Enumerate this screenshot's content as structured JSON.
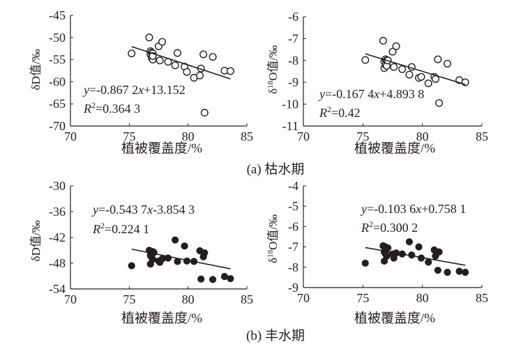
{
  "panel_captions": {
    "a": "(a) 枯水期",
    "b": "(b) 丰水期"
  },
  "chart_data": [
    {
      "type": "scatter",
      "id": "a-left",
      "marker": "open-circle",
      "xlabel": "植被覆盖度/%",
      "ylabel": "δD值/‰",
      "ylabel_parts": [
        "δD值/",
        "‰"
      ],
      "xlim": [
        70,
        85
      ],
      "ylim": [
        -70,
        -45
      ],
      "xticks": [
        70,
        75,
        80,
        85
      ],
      "yticks": [
        -45,
        -50,
        -55,
        -60,
        -65,
        -70
      ],
      "x": [
        75.2,
        76.7,
        76.8,
        76.8,
        76.9,
        76.9,
        77.0,
        77.0,
        77.0,
        77.5,
        77.6,
        77.8,
        78.3,
        78.9,
        79.1,
        79.7,
        79.9,
        80.5,
        81.0,
        81.1,
        81.3,
        81.4,
        82.1,
        83.1,
        83.6
      ],
      "y": [
        -53.6,
        -50.0,
        -53.1,
        -53.8,
        -54.6,
        -53.4,
        -53.6,
        -55.0,
        -54.2,
        -52.0,
        -55.2,
        -51.0,
        -55.5,
        -56.3,
        -53.5,
        -56.6,
        -57.8,
        -59.1,
        -58.6,
        -57.0,
        -53.8,
        -67.0,
        -54.4,
        -57.5,
        -57.6
      ],
      "fit": {
        "slope": -0.8672,
        "intercept": 13.152,
        "x_range": [
          75.2,
          83.6
        ]
      },
      "equation": {
        "y_var": "y",
        "rest": "=-0.867 2",
        "x_var": "x",
        "tail": "+13.152"
      },
      "r2": {
        "r": "R",
        "sup": "2",
        "val": "=0.364 3"
      }
    },
    {
      "type": "scatter",
      "id": "a-right",
      "marker": "open-circle",
      "xlabel": "植被覆盖度/%",
      "ylabel": "δ18O值/‰",
      "ylabel_parts": [
        "δ",
        "18",
        "O值/",
        "‰"
      ],
      "xlim": [
        70,
        85
      ],
      "ylim": [
        -11,
        -6
      ],
      "xticks": [
        70,
        75,
        80,
        85
      ],
      "yticks": [
        -6,
        -7,
        -8,
        -9,
        -10,
        -11
      ],
      "x": [
        75.2,
        76.7,
        76.8,
        76.8,
        76.9,
        76.9,
        77.0,
        77.0,
        77.1,
        77.5,
        77.6,
        77.8,
        78.3,
        78.9,
        79.1,
        79.7,
        79.9,
        80.5,
        81.0,
        81.1,
        81.3,
        81.4,
        82.1,
        83.1,
        83.6
      ],
      "y": [
        -7.98,
        -7.1,
        -8.35,
        -8.05,
        -8.2,
        -7.95,
        -8.0,
        -8.25,
        -8.0,
        -7.6,
        -8.3,
        -7.35,
        -8.4,
        -8.65,
        -8.3,
        -8.8,
        -8.75,
        -9.05,
        -8.75,
        -8.85,
        -7.95,
        -9.95,
        -8.15,
        -8.9,
        -9.0
      ],
      "fit": {
        "slope": -0.1674,
        "intercept": 4.8938,
        "x_range": [
          75.2,
          83.6
        ]
      },
      "equation": {
        "y_var": "y",
        "rest": "=-0.167 4",
        "x_var": "x",
        "tail": "+4.893 8"
      },
      "r2": {
        "r": "R",
        "sup": "2",
        "val": "=0.42"
      }
    },
    {
      "type": "scatter",
      "id": "b-left",
      "marker": "filled-circle",
      "xlabel": "植被覆盖度/%",
      "ylabel": "δD值/‰",
      "ylabel_parts": [
        "δD值/",
        "‰"
      ],
      "xlim": [
        70,
        85
      ],
      "ylim": [
        -54,
        -30
      ],
      "xticks": [
        70,
        75,
        80,
        85
      ],
      "yticks": [
        -30,
        -36,
        -42,
        -48,
        -54
      ],
      "x": [
        75.2,
        76.7,
        76.8,
        76.8,
        76.9,
        76.9,
        77.0,
        77.0,
        77.1,
        77.5,
        77.6,
        77.8,
        78.3,
        78.9,
        79.1,
        79.7,
        79.9,
        80.5,
        81.0,
        81.1,
        81.3,
        81.4,
        82.1,
        83.1,
        83.6
      ],
      "y": [
        -48.6,
        -45.0,
        -48.2,
        -46.2,
        -46.6,
        -45.4,
        -45.3,
        -47.1,
        -45.5,
        -47.5,
        -47.8,
        -47.0,
        -46.8,
        -42.6,
        -47.6,
        -44.0,
        -47.5,
        -47.6,
        -45.1,
        -51.7,
        -46.5,
        -45.6,
        -51.8,
        -51.1,
        -51.6
      ],
      "fit": {
        "slope": -0.5437,
        "intercept": -3.8543,
        "x_range": [
          75.2,
          83.6
        ]
      },
      "equation": {
        "y_var": "y",
        "rest": "=-0.543 7",
        "x_var": "x",
        "tail": "-3.854 3"
      },
      "r2": {
        "r": "R",
        "sup": "2",
        "val": "=0.224 1"
      }
    },
    {
      "type": "scatter",
      "id": "b-right",
      "marker": "filled-circle",
      "xlabel": "植被覆盖度/%",
      "ylabel": "δ18O值/‰",
      "ylabel_parts": [
        "δ",
        "18",
        "O值/",
        "‰"
      ],
      "xlim": [
        70,
        85
      ],
      "ylim": [
        -9,
        -4
      ],
      "xticks": [
        70,
        75,
        80,
        85
      ],
      "yticks": [
        -4,
        -5,
        -6,
        -7,
        -8,
        -9
      ],
      "x": [
        75.2,
        76.7,
        76.8,
        76.8,
        76.9,
        76.9,
        77.0,
        77.0,
        77.1,
        77.5,
        77.6,
        77.8,
        78.3,
        78.9,
        79.1,
        79.7,
        79.9,
        80.5,
        81.0,
        81.1,
        81.3,
        81.4,
        82.1,
        83.1,
        83.6
      ],
      "y": [
        -7.8,
        -6.95,
        -7.7,
        -7.25,
        -7.35,
        -7.0,
        -7.05,
        -7.45,
        -7.05,
        -7.35,
        -7.55,
        -7.3,
        -7.35,
        -6.75,
        -7.4,
        -7.0,
        -7.55,
        -7.75,
        -7.15,
        -7.45,
        -8.15,
        -7.25,
        -8.25,
        -8.2,
        -8.25
      ],
      "fit": {
        "slope": -0.1036,
        "intercept": 0.7581,
        "x_range": [
          75.2,
          83.6
        ]
      },
      "equation": {
        "y_var": "y",
        "rest": "=-0.103 6",
        "x_var": "x",
        "tail": "+0.758 1"
      },
      "r2": {
        "r": "R",
        "sup": "2",
        "val": "=0.300 2"
      }
    }
  ]
}
